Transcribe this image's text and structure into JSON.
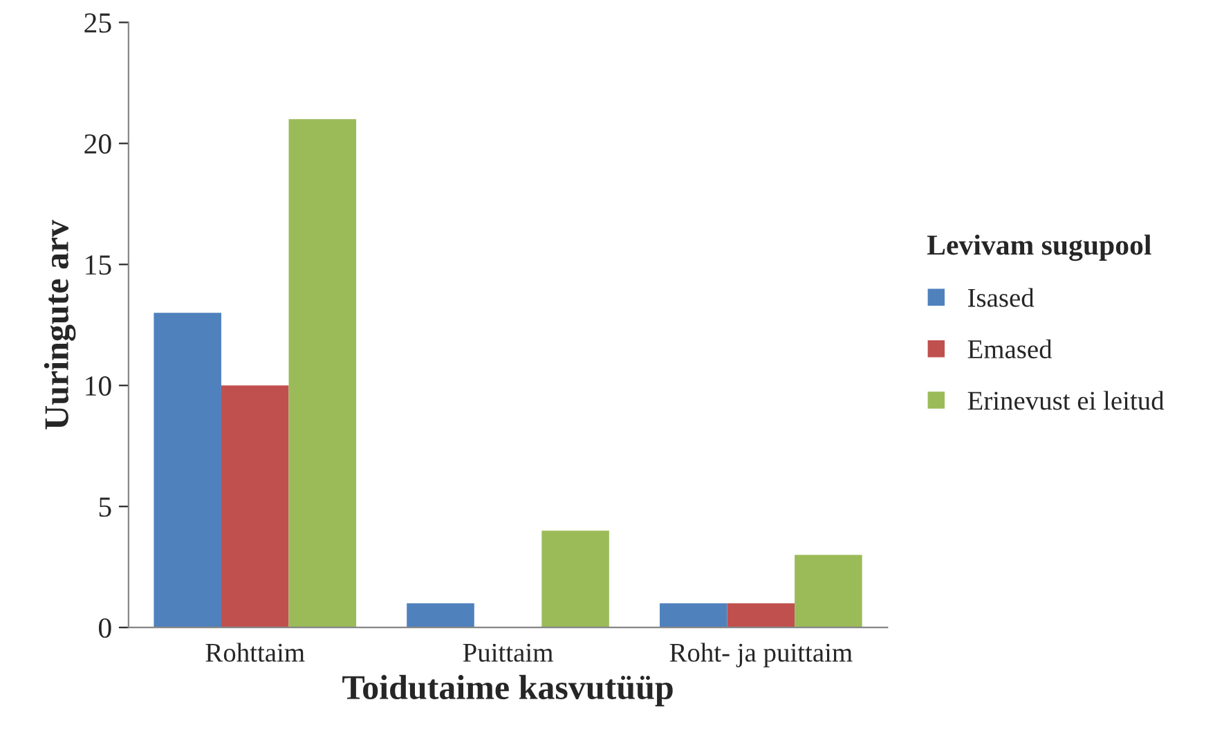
{
  "chart_data": {
    "type": "bar",
    "xlabel": "Toidutaime kasvutüüp",
    "ylabel": "Uuringute arv",
    "legend_title": "Levivam sugupool",
    "categories": [
      "Rohttaim",
      "Puittaim",
      "Roht- ja puittaim"
    ],
    "series": [
      {
        "name": "Isased",
        "color": "#4f81bd",
        "values": [
          13,
          1,
          1
        ]
      },
      {
        "name": "Emased",
        "color": "#c0504d",
        "values": [
          10,
          0,
          1
        ]
      },
      {
        "name": "Erinevust ei leitud",
        "color": "#9bbb59",
        "values": [
          21,
          4,
          3
        ]
      }
    ],
    "ylim": [
      0,
      25
    ],
    "yticks": [
      0,
      5,
      10,
      15,
      20,
      25
    ],
    "grid": false,
    "legend": "right"
  }
}
